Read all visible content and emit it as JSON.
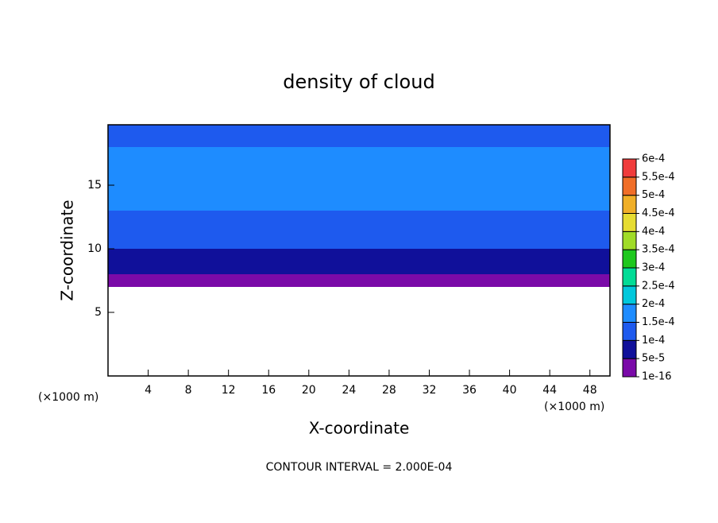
{
  "chart_data": {
    "type": "contour",
    "title": "density of cloud",
    "xlabel": "X-coordinate",
    "ylabel": "Z-coordinate",
    "x_unit_labels": [
      "(×1000 m)",
      "(×1000 m)"
    ],
    "footnote": "CONTOUR INTERVAL = 2.000E-04",
    "xlim": [
      0,
      50
    ],
    "ylim": [
      0,
      19.75
    ],
    "xticks": [
      4,
      8,
      12,
      16,
      20,
      24,
      28,
      32,
      36,
      40,
      44,
      48
    ],
    "yticks": [
      5,
      10,
      15
    ],
    "z": [
      7.5,
      8.5,
      9.5,
      10.5,
      11.5,
      12.5,
      13.5,
      14.5,
      15.5,
      16.5,
      17.5,
      18.5,
      19.5
    ],
    "values": [
      2e-05,
      7e-05,
      9e-05,
      0.00011,
      0.00013,
      0.00014,
      0.00016,
      0.00017,
      0.00017,
      0.00016,
      0.00015,
      0.00013,
      0.00012
    ],
    "colorbar": {
      "levels": [
        {
          "value": 1e-16,
          "label": "1e-16"
        },
        {
          "value": 5e-05,
          "label": "5e-5"
        },
        {
          "value": 0.0001,
          "label": "1e-4"
        },
        {
          "value": 0.00015,
          "label": "1.5e-4"
        },
        {
          "value": 0.0002,
          "label": "2e-4"
        },
        {
          "value": 0.00025,
          "label": "2.5e-4"
        },
        {
          "value": 0.0003,
          "label": "3e-4"
        },
        {
          "value": 0.00035,
          "label": "3.5e-4"
        },
        {
          "value": 0.0004,
          "label": "4e-4"
        },
        {
          "value": 0.00045,
          "label": "4.5e-4"
        },
        {
          "value": 0.0005,
          "label": "5e-4"
        },
        {
          "value": 0.00055,
          "label": "5.5e-4"
        },
        {
          "value": 0.0006,
          "label": "6e-4"
        }
      ],
      "colors": [
        "#7a0aa8",
        "#10109a",
        "#1e5aee",
        "#1e8cff",
        "#00c8dc",
        "#00dc96",
        "#1ec81e",
        "#a0dc28",
        "#e6dc32",
        "#f0af28",
        "#f06e28",
        "#f03c3c",
        "#f08c8c"
      ]
    }
  }
}
